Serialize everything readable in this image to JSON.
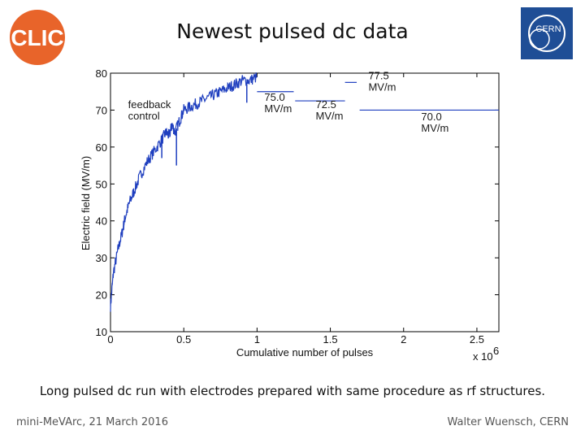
{
  "slide": {
    "title": "Newest pulsed dc data",
    "caption": "Long pulsed dc run with electrodes prepared with same procedure as rf structures.",
    "footer_left": "mini-MeVArc, 21 March 2016",
    "footer_right": "Walter Wuensch, CERN"
  },
  "logos": {
    "clic_text": "CLIC",
    "cern_text": "CERN"
  },
  "colors": {
    "series": "#1f3fbf",
    "clic_orange": "#e8642a",
    "cern_blue": "#1f4e96"
  },
  "chart_data": {
    "type": "line",
    "title": "",
    "xlabel": "Cumulative number of pulses",
    "ylabel": "Electric field (MV/m)",
    "x_multiplier_label": "x 10",
    "x_multiplier_exp": "6",
    "xlim": [
      0,
      2.65
    ],
    "ylim": [
      10,
      80
    ],
    "xticks": [
      0,
      0.5,
      1,
      1.5,
      2,
      2.5
    ],
    "xtick_labels": [
      "0",
      "0.5",
      "1",
      "1.5",
      "2",
      "2.5"
    ],
    "yticks": [
      10,
      20,
      30,
      40,
      50,
      60,
      70,
      80
    ],
    "ytick_labels": [
      "10",
      "20",
      "30",
      "40",
      "50",
      "60",
      "70",
      "80"
    ],
    "grid": false,
    "series": [
      {
        "x": [
          0,
          0.02,
          0.05,
          0.08,
          0.1,
          0.13,
          0.16,
          0.2,
          0.25,
          0.3,
          0.35,
          0.38,
          0.4,
          0.42,
          0.44,
          0.47,
          0.5,
          0.55,
          0.6,
          0.65,
          0.7,
          0.75,
          0.8,
          0.85,
          0.9,
          0.95,
          1.0
        ],
        "y": [
          17,
          26,
          32,
          37,
          41,
          45,
          48,
          52,
          56,
          59,
          62,
          64,
          63,
          66,
          64,
          67,
          70,
          71,
          72,
          73,
          74,
          75,
          76,
          77,
          78,
          78,
          79
        ]
      }
    ],
    "levels": [
      {
        "x": [
          1.0,
          1.25
        ],
        "y": 75.0
      },
      {
        "x": [
          1.26,
          1.6
        ],
        "y": 72.5
      },
      {
        "x": [
          1.7,
          2.65
        ],
        "y": 70.0
      },
      {
        "x": [
          1.6,
          1.68
        ],
        "y": 77.5
      }
    ],
    "annotations": [
      {
        "lines": [
          "feedback",
          "control"
        ],
        "x": 0.12,
        "y": 70.5
      },
      {
        "lines": [
          "75.0",
          "MV/m"
        ],
        "x": 1.05,
        "y": 72.5
      },
      {
        "lines": [
          "72.5",
          "MV/m"
        ],
        "x": 1.4,
        "y": 70.5
      },
      {
        "lines": [
          "77.5",
          "MV/m"
        ],
        "x": 1.76,
        "y": 78.4
      },
      {
        "lines": [
          "70.0",
          "MV/m"
        ],
        "x": 2.12,
        "y": 67.2
      }
    ]
  }
}
